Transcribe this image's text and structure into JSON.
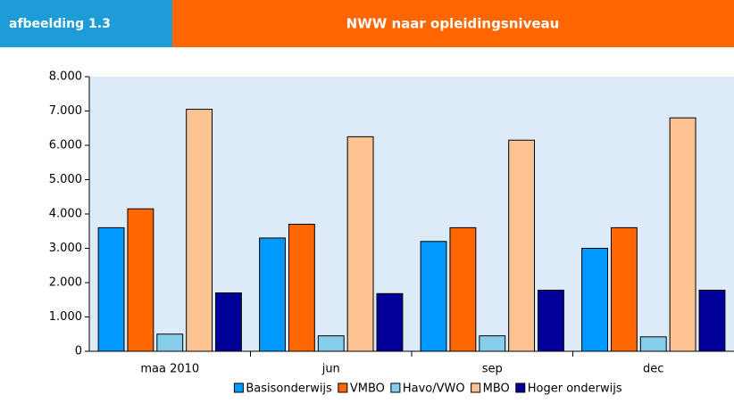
{
  "header": {
    "label": "afbeelding 1.3"
  },
  "chart_data": {
    "type": "bar",
    "title": "NWW naar opleidingsniveau",
    "categories": [
      "maa 2010",
      "jun",
      "sep",
      "dec"
    ],
    "series": [
      {
        "name": "Basisonderwijs",
        "color": "#0099ff",
        "values": [
          3600,
          3300,
          3200,
          3000
        ]
      },
      {
        "name": "VMBO",
        "color": "#ff6600",
        "values": [
          4150,
          3700,
          3600,
          3600
        ]
      },
      {
        "name": "Havo/VWO",
        "color": "#87ceeb",
        "values": [
          500,
          450,
          450,
          420
        ]
      },
      {
        "name": "MBO",
        "color": "#fcc291",
        "values": [
          7050,
          6250,
          6150,
          6800
        ]
      },
      {
        "name": "Hoger onderwijs",
        "color": "#000099",
        "values": [
          1700,
          1680,
          1780,
          1780
        ]
      }
    ],
    "ylim": [
      0,
      8000
    ],
    "yticks": [
      0,
      {
        "value": 1000,
        "label": "1.000"
      },
      {
        "value": 2000,
        "label": "2.000"
      },
      {
        "value": 3000,
        "label": "3.000"
      },
      {
        "value": 4000,
        "label": "4.000"
      },
      {
        "value": 5000,
        "label": "5.000"
      },
      {
        "value": 6000,
        "label": "6.000"
      },
      {
        "value": 7000,
        "label": "7.000"
      },
      {
        "value": 8000,
        "label": "8.000"
      }
    ],
    "plot_background": "#dcebf7",
    "legend": "bottom"
  }
}
